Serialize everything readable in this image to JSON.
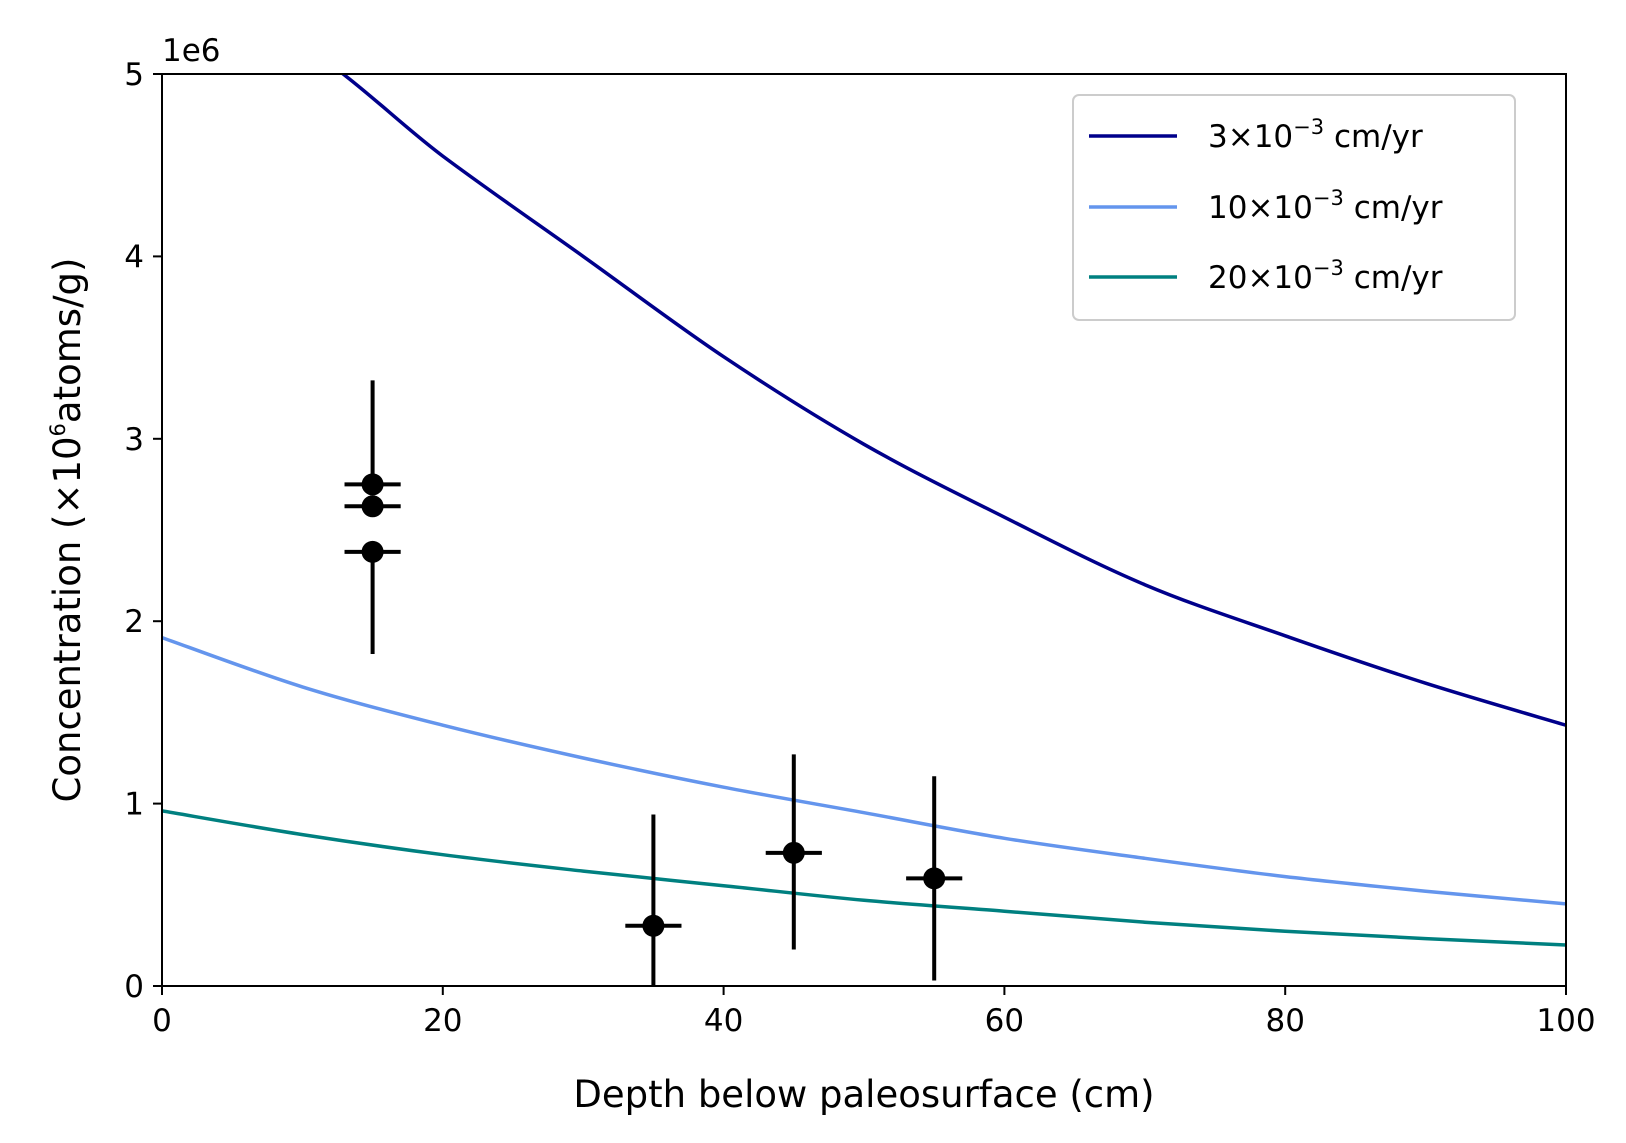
{
  "chart_data": {
    "type": "line",
    "title": "",
    "xlabel": "Depth below paleosurface (cm)",
    "ylabel_parts": [
      "Concentration (×10",
      "6",
      "atoms/g)"
    ],
    "y_offset_text": "1e6",
    "xlim": [
      0,
      100
    ],
    "ylim": [
      0,
      5000000
    ],
    "x_ticks": [
      0,
      20,
      40,
      60,
      80,
      100
    ],
    "y_ticks": [
      0,
      1000000,
      2000000,
      3000000,
      4000000,
      5000000
    ],
    "x_tick_labels": [
      "0",
      "20",
      "40",
      "60",
      "80",
      "100"
    ],
    "y_tick_labels": [
      "0",
      "1",
      "2",
      "3",
      "4",
      "5"
    ],
    "grid": false,
    "legend_position": "upper-right",
    "series": [
      {
        "name_parts": [
          "3×10",
          "−3",
          " cm/yr"
        ],
        "color": "#00008b",
        "x": [
          0,
          10,
          20,
          30,
          40,
          50,
          60,
          70,
          80,
          90,
          100
        ],
        "y": [
          5400000,
          5150000,
          4550000,
          4000000,
          3450000,
          2970000,
          2570000,
          2200000,
          1920000,
          1660000,
          1430000
        ]
      },
      {
        "name_parts": [
          "10×10",
          "−3",
          " cm/yr"
        ],
        "color": "#6495ed",
        "x": [
          0,
          10,
          20,
          30,
          40,
          50,
          60,
          70,
          80,
          90,
          100
        ],
        "y": [
          1910000,
          1640000,
          1430000,
          1250000,
          1090000,
          950000,
          810000,
          700000,
          600000,
          520000,
          450000
        ]
      },
      {
        "name_parts": [
          "20×10",
          "−3",
          " cm/yr"
        ],
        "color": "#008080",
        "x": [
          0,
          10,
          20,
          30,
          40,
          50,
          60,
          70,
          80,
          90,
          100
        ],
        "y": [
          960000,
          830000,
          720000,
          630000,
          550000,
          470000,
          410000,
          350000,
          300000,
          260000,
          225000
        ]
      }
    ],
    "measurements": {
      "color": "#000000",
      "points": [
        {
          "x": 15,
          "y": 2750000,
          "xerr": 2,
          "yerr_low": 0,
          "yerr_high": 570000
        },
        {
          "x": 15,
          "y": 2630000,
          "xerr": 2,
          "yerr_low": 0,
          "yerr_high": 0
        },
        {
          "x": 15,
          "y": 2380000,
          "xerr": 2,
          "yerr_low": 560000,
          "yerr_high": 0
        },
        {
          "x": 35,
          "y": 330000,
          "xerr": 2,
          "yerr_low": 330000,
          "yerr_high": 610000
        },
        {
          "x": 45,
          "y": 730000,
          "xerr": 2,
          "yerr_low": 530000,
          "yerr_high": 540000
        },
        {
          "x": 55,
          "y": 590000,
          "xerr": 2,
          "yerr_low": 560000,
          "yerr_high": 560000
        }
      ]
    }
  }
}
